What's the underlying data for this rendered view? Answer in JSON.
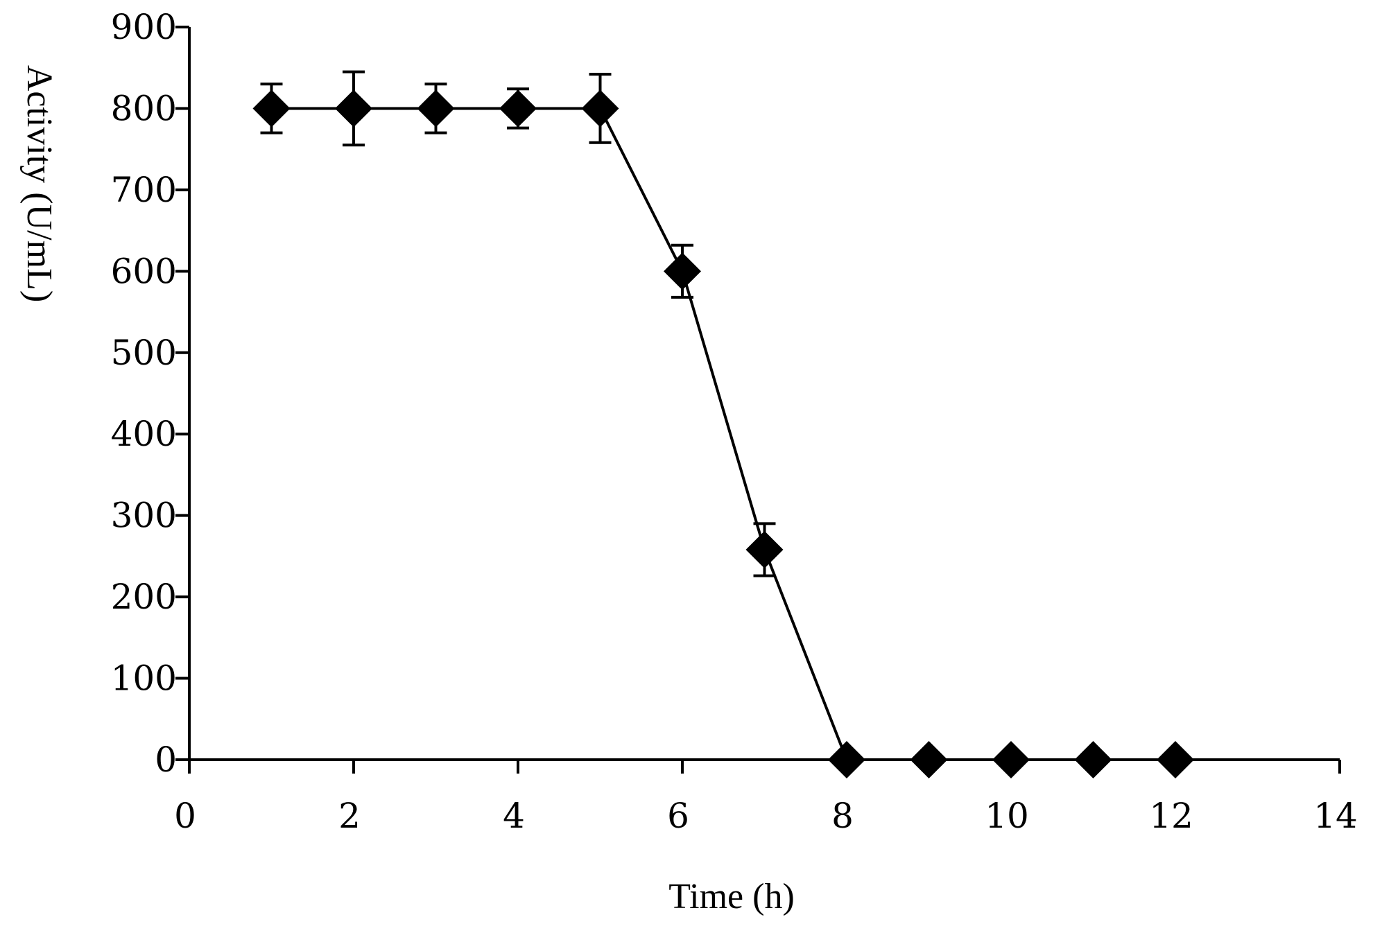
{
  "chart_data": {
    "type": "scatter",
    "xlabel": "Time (h)",
    "ylabel": "Activity (U/mL)",
    "xlim": [
      0,
      14
    ],
    "ylim": [
      0,
      900
    ],
    "xticks": [
      0,
      2,
      4,
      6,
      8,
      10,
      12,
      14
    ],
    "yticks": [
      0,
      100,
      200,
      300,
      400,
      500,
      600,
      700,
      800,
      900
    ],
    "grid": false,
    "legend": "none",
    "marker": "diamond",
    "color": "#000000",
    "series": [
      {
        "x": [
          1,
          2,
          3,
          4,
          5,
          6,
          7,
          8,
          9,
          10,
          11,
          12
        ],
        "y": [
          800,
          800,
          800,
          800,
          800,
          600,
          258,
          0,
          0,
          0,
          0,
          0
        ],
        "error": [
          30,
          45,
          30,
          24,
          42,
          32,
          32,
          0,
          0,
          0,
          0,
          0
        ]
      }
    ]
  }
}
